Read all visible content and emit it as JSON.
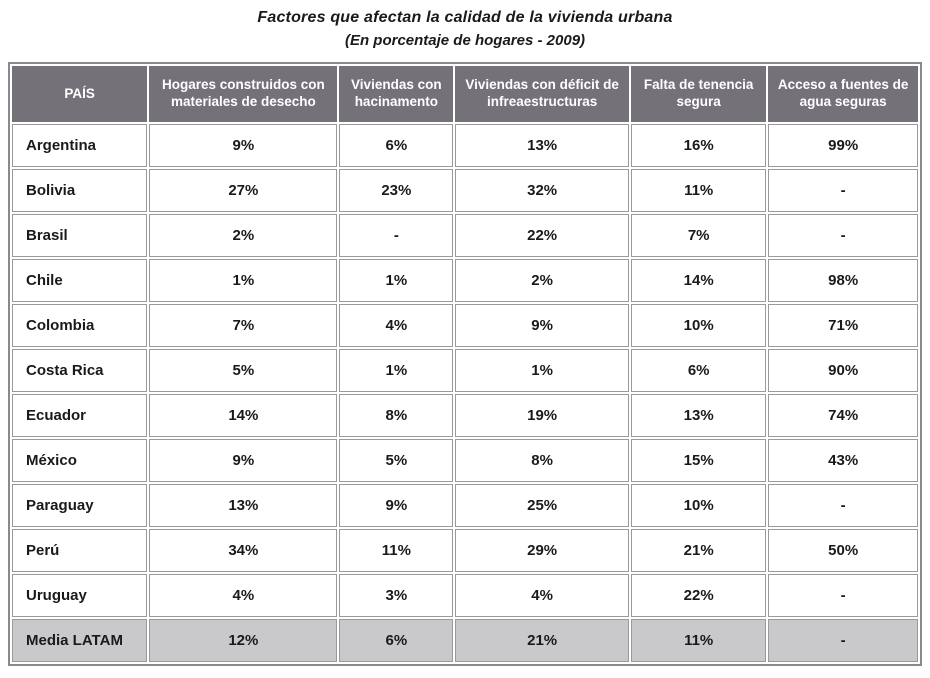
{
  "title": "Factores que afectan la calidad de la vivienda urbana",
  "subtitle": "(En porcentaje de hogares - 2009)",
  "colors": {
    "header_bg": "#757179",
    "header_text": "#ffffff",
    "cell_border": "#9a9a9a",
    "outer_border": "#8a8a8a",
    "highlight_row_bg": "#c9c8cb",
    "body_text": "#1a1a1a"
  },
  "chart_data": {
    "type": "table",
    "title": "Factores que afectan la calidad de la vivienda urbana",
    "subtitle": "(En porcentaje de hogares - 2009)",
    "columns": [
      "PAÍS",
      "Hogares construidos con materiales de desecho",
      "Viviendas con hacinamento",
      "Viviendas con déficit de infreaestructuras",
      "Falta de tenencia segura",
      "Acceso a fuentes de agua seguras"
    ],
    "rows": [
      {
        "pais": "Argentina",
        "values": [
          "9%",
          "6%",
          "13%",
          "16%",
          "99%"
        ],
        "highlight": false
      },
      {
        "pais": "Bolivia",
        "values": [
          "27%",
          "23%",
          "32%",
          "11%",
          "-"
        ],
        "highlight": false
      },
      {
        "pais": "Brasil",
        "values": [
          "2%",
          "-",
          "22%",
          "7%",
          "-"
        ],
        "highlight": false
      },
      {
        "pais": "Chile",
        "values": [
          "1%",
          "1%",
          "2%",
          "14%",
          "98%"
        ],
        "highlight": false
      },
      {
        "pais": "Colombia",
        "values": [
          "7%",
          "4%",
          "9%",
          "10%",
          "71%"
        ],
        "highlight": false
      },
      {
        "pais": "Costa Rica",
        "values": [
          "5%",
          "1%",
          "1%",
          "6%",
          "90%"
        ],
        "highlight": false
      },
      {
        "pais": "Ecuador",
        "values": [
          "14%",
          "8%",
          "19%",
          "13%",
          "74%"
        ],
        "highlight": false
      },
      {
        "pais": "México",
        "values": [
          "9%",
          "5%",
          "8%",
          "15%",
          "43%"
        ],
        "highlight": false
      },
      {
        "pais": "Paraguay",
        "values": [
          "13%",
          "9%",
          "25%",
          "10%",
          "-"
        ],
        "highlight": false
      },
      {
        "pais": "Perú",
        "values": [
          "34%",
          "11%",
          "29%",
          "21%",
          "50%"
        ],
        "highlight": false
      },
      {
        "pais": "Uruguay",
        "values": [
          "4%",
          "3%",
          "4%",
          "22%",
          "-"
        ],
        "highlight": false
      },
      {
        "pais": "Media LATAM",
        "values": [
          "12%",
          "6%",
          "21%",
          "11%",
          "-"
        ],
        "highlight": true
      }
    ]
  }
}
